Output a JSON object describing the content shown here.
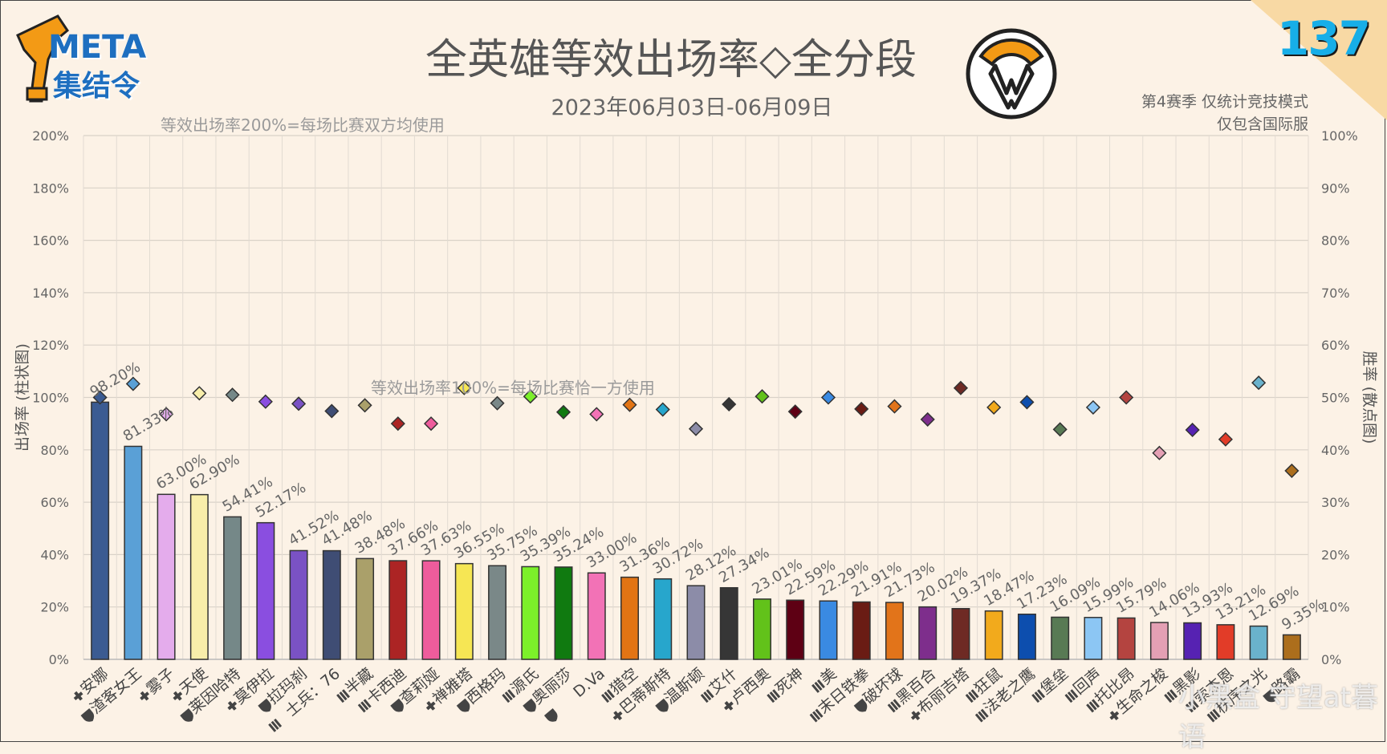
{
  "header": {
    "title": "全英雄等效出场率◇全分段",
    "date_range": "2023年06月03日-06月09日",
    "season_note": "第4赛季 仅统计竞技模式",
    "server_note": "仅包含国际服",
    "issue_number": "137",
    "logo_text_top": "META",
    "logo_text_bottom": "集结令"
  },
  "watermark": "小黑盒 守望at暮语",
  "colors": {
    "background": "#fcf2e6",
    "corner": "#f8d9a4",
    "issue": "#17aee8",
    "logo_orange": "#f39a15",
    "logo_blue": "#1e6fc0"
  },
  "chart_data": {
    "type": "bar",
    "ylabel": "出场率 (柱状图)",
    "y2label": "胜率 (散点图)",
    "ylim": [
      0,
      200
    ],
    "y2lim": [
      0,
      100
    ],
    "yticks": [
      "0%",
      "20%",
      "40%",
      "60%",
      "80%",
      "100%",
      "120%",
      "140%",
      "160%",
      "180%",
      "200%"
    ],
    "y2ticks": [
      "0%",
      "10%",
      "20%",
      "30%",
      "40%",
      "50%",
      "60%",
      "70%",
      "80%",
      "90%",
      "100%"
    ],
    "reference_lines": [
      {
        "value": 200,
        "label": "等效出场率200%=每场比赛双方均使用"
      },
      {
        "value": 100,
        "label": "等效出场率100%=每场比赛恰一方使用"
      }
    ],
    "categories": [
      "安娜",
      "渣客女王",
      "雾子",
      "天使",
      "莱因哈特",
      "莫伊拉",
      "拉玛刹",
      "士兵：76",
      "半藏",
      "卡西迪",
      "查莉娅",
      "禅雅塔",
      "西格玛",
      "源氏",
      "奥丽莎",
      "D.Va",
      "猎空",
      "巴蒂斯特",
      "温斯顿",
      "艾什",
      "卢西奥",
      "死神",
      "美",
      "末日铁拳",
      "破坏球",
      "黑百合",
      "布丽吉塔",
      "狂鼠",
      "法老之鹰",
      "堡垒",
      "回声",
      "托比昂",
      "生命之梭",
      "黑影",
      "索杰恩",
      "秩序之光",
      "路霸"
    ],
    "roles": [
      "support",
      "tank",
      "support",
      "support",
      "tank",
      "support",
      "tank",
      "damage",
      "damage",
      "damage",
      "tank",
      "support",
      "tank",
      "damage",
      "tank",
      "tank",
      "damage",
      "support",
      "tank",
      "damage",
      "support",
      "damage",
      "damage",
      "damage",
      "tank",
      "damage",
      "support",
      "damage",
      "damage",
      "damage",
      "damage",
      "damage",
      "support",
      "damage",
      "damage",
      "damage",
      "tank"
    ],
    "series": [
      {
        "name": "出场率",
        "values": [
          98.2,
          81.33,
          63.0,
          62.9,
          54.41,
          52.17,
          41.52,
          41.48,
          38.48,
          37.66,
          37.63,
          36.55,
          35.75,
          35.39,
          35.24,
          33.0,
          31.36,
          30.72,
          28.12,
          27.34,
          23.01,
          22.59,
          22.29,
          21.91,
          21.73,
          20.02,
          19.37,
          18.47,
          17.23,
          16.09,
          15.99,
          15.79,
          14.06,
          13.93,
          13.21,
          12.69,
          9.35
        ],
        "labels": [
          "98.20%",
          "81.33%",
          "63.00%",
          "62.90%",
          "54.41%",
          "52.17%",
          "41.52%",
          "41.48%",
          "38.48%",
          "37.66%",
          "37.63%",
          "36.55%",
          "35.75%",
          "35.39%",
          "35.24%",
          "33.00%",
          "31.36%",
          "30.72%",
          "28.12%",
          "27.34%",
          "23.01%",
          "22.59%",
          "22.29%",
          "21.91%",
          "21.73%",
          "20.02%",
          "19.37%",
          "18.47%",
          "17.23%",
          "16.09%",
          "15.99%",
          "15.79%",
          "14.06%",
          "13.93%",
          "13.21%",
          "12.69%",
          "9.35%"
        ]
      },
      {
        "name": "胜率",
        "values": [
          50.0,
          52.6,
          46.8,
          50.8,
          50.5,
          49.2,
          48.8,
          47.4,
          48.5,
          45.0,
          45.0,
          51.8,
          48.9,
          50.2,
          47.2,
          46.8,
          48.6,
          47.7,
          44.0,
          48.7,
          50.2,
          47.3,
          50.0,
          47.8,
          48.3,
          45.8,
          51.8,
          48.1,
          49.1,
          43.9,
          48.1,
          50.0,
          39.4,
          43.8,
          42.0,
          52.8,
          36.0
        ]
      }
    ],
    "bar_colors": [
      "#3b5b92",
      "#5aa0d6",
      "#e4acec",
      "#f8eeaa",
      "#758888",
      "#8a4ee0",
      "#7a52c4",
      "#3f4d74",
      "#aaa06a",
      "#ac2424",
      "#ee5c9c",
      "#f6e654",
      "#7a8888",
      "#7cf02a",
      "#107a10",
      "#f272b6",
      "#e27414",
      "#27a6cc",
      "#8c8ca8",
      "#363636",
      "#62c21a",
      "#5e0014",
      "#3a8ae2",
      "#6a1c14",
      "#e2741a",
      "#7e2e8c",
      "#6e2a24",
      "#f2aa1c",
      "#0d4eae",
      "#587a54",
      "#8cc6f4",
      "#b44440",
      "#e4a0b4",
      "#5622b2",
      "#e23c28",
      "#6ab2cc",
      "#ac6e1c"
    ],
    "marker_colors": [
      "#3b5b92",
      "#5aa0d6",
      "#e4acec",
      "#f8eeaa",
      "#758888",
      "#8a4ee0",
      "#7a52c4",
      "#3f4d74",
      "#aaa06a",
      "#ac2424",
      "#ee5c9c",
      "#f6e654",
      "#7a8888",
      "#7cf02a",
      "#107a10",
      "#f272b6",
      "#e27414",
      "#27a6cc",
      "#8c8ca8",
      "#363636",
      "#62c21a",
      "#5e0014",
      "#3a8ae2",
      "#6a1c14",
      "#e2741a",
      "#7e2e8c",
      "#6e2a24",
      "#f2aa1c",
      "#0d4eae",
      "#587a54",
      "#8cc6f4",
      "#b44440",
      "#e4a0b4",
      "#5622b2",
      "#e23c28",
      "#6ab2cc",
      "#ac6e1c"
    ],
    "grid": true
  }
}
